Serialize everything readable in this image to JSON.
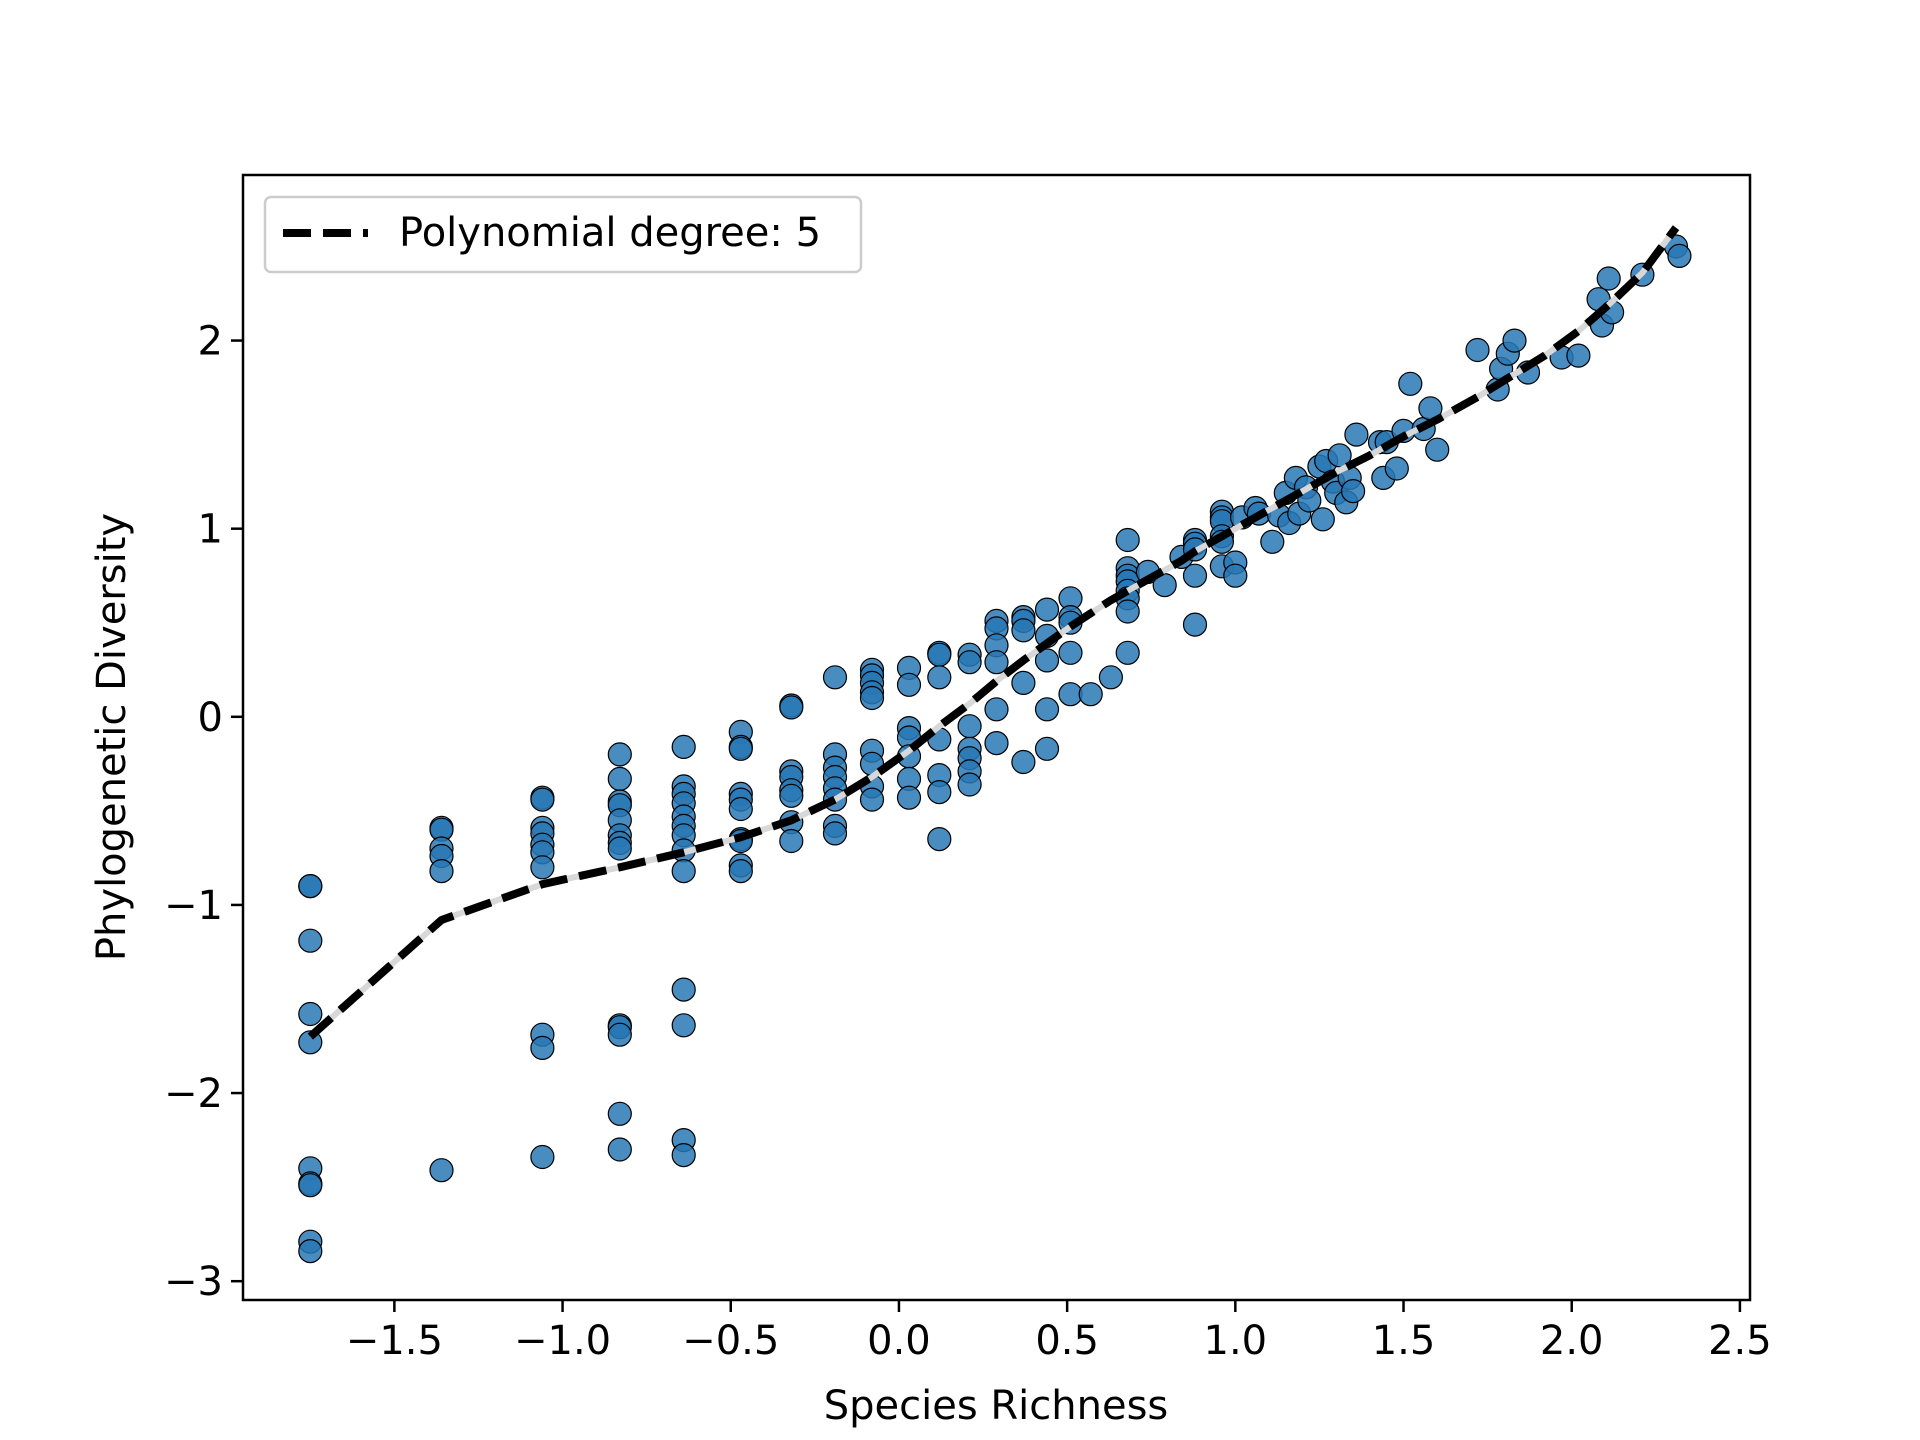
{
  "chart_data": {
    "type": "scatter",
    "xlabel": "Species Richness",
    "ylabel": "Phylogenetic Diversity",
    "xlim": [
      -1.95,
      2.53
    ],
    "ylim": [
      -3.1,
      2.88
    ],
    "xticks": [
      -1.5,
      -1.0,
      -0.5,
      0.0,
      0.5,
      1.0,
      1.5,
      2.0,
      2.5
    ],
    "xtick_labels": [
      "−1.5",
      "−1.0",
      "−0.5",
      "0.0",
      "0.5",
      "1.0",
      "1.5",
      "2.0",
      "2.5"
    ],
    "yticks": [
      -3,
      -2,
      -1,
      0,
      1,
      2
    ],
    "ytick_labels": [
      "−3",
      "−2",
      "−1",
      "0",
      "1",
      "2"
    ],
    "grid": false,
    "legend_position": "upper-left",
    "colors": {
      "points": "#2878b5",
      "point_edge": "#000000",
      "fit_line": "#000000",
      "fit_shadow": "#d8d8d8"
    },
    "series": [
      {
        "kind": "points",
        "x": [
          -1.75,
          -1.75,
          -1.75,
          -1.75,
          -1.75,
          -1.75,
          -1.75,
          -1.75,
          -1.75,
          -1.75,
          -1.36,
          -1.36,
          -1.36,
          -1.36,
          -1.36,
          -1.36,
          -1.06,
          -1.06,
          -1.06,
          -1.06,
          -1.06,
          -1.06,
          -1.06,
          -1.06,
          -1.06,
          -1.06,
          -0.83,
          -0.83,
          -0.83,
          -0.83,
          -0.83,
          -0.83,
          -0.83,
          -0.83,
          -0.83,
          -0.83,
          -0.83,
          -0.83,
          -0.83,
          -0.64,
          -0.64,
          -0.64,
          -0.64,
          -0.64,
          -0.64,
          -0.64,
          -0.64,
          -0.64,
          -0.64,
          -0.64,
          -0.64,
          -0.64,
          -0.47,
          -0.47,
          -0.47,
          -0.47,
          -0.47,
          -0.47,
          -0.47,
          -0.47,
          -0.47,
          -0.47,
          -0.32,
          -0.32,
          -0.32,
          -0.32,
          -0.32,
          -0.32,
          -0.32,
          -0.32,
          -0.19,
          -0.19,
          -0.19,
          -0.19,
          -0.19,
          -0.19,
          -0.19,
          -0.19,
          -0.08,
          -0.08,
          -0.08,
          -0.08,
          -0.08,
          -0.08,
          -0.08,
          -0.08,
          -0.08,
          0.03,
          0.03,
          0.03,
          0.03,
          0.03,
          0.03,
          0.03,
          0.12,
          0.12,
          0.12,
          0.12,
          0.12,
          0.12,
          0.12,
          0.21,
          0.21,
          0.21,
          0.21,
          0.21,
          0.21,
          0.21,
          0.29,
          0.29,
          0.29,
          0.29,
          0.29,
          0.29,
          0.37,
          0.37,
          0.37,
          0.37,
          0.37,
          0.44,
          0.44,
          0.44,
          0.44,
          0.44,
          0.51,
          0.51,
          0.51,
          0.51,
          0.51,
          0.57,
          0.63,
          0.68,
          0.68,
          0.68,
          0.68,
          0.68,
          0.68,
          0.68,
          0.68,
          0.74,
          0.79,
          0.84,
          0.88,
          0.88,
          0.88,
          0.88,
          0.88,
          0.96,
          0.96,
          0.96,
          0.96,
          0.96,
          0.96,
          1.0,
          1.0,
          1.02,
          1.06,
          1.07,
          1.11,
          1.13,
          1.15,
          1.16,
          1.18,
          1.19,
          1.21,
          1.22,
          1.25,
          1.26,
          1.27,
          1.29,
          1.3,
          1.31,
          1.33,
          1.34,
          1.35,
          1.36,
          1.43,
          1.44,
          1.45,
          1.48,
          1.5,
          1.52,
          1.56,
          1.58,
          1.6,
          1.72,
          1.78,
          1.79,
          1.81,
          1.83,
          1.87,
          1.97,
          2.02,
          2.08,
          2.09,
          2.11,
          2.12,
          2.21,
          2.31,
          2.32
        ],
        "y": [
          -0.9,
          -0.9,
          -1.19,
          -1.58,
          -1.73,
          -2.4,
          -2.48,
          -2.49,
          -2.79,
          -2.84,
          -0.59,
          -0.6,
          -0.7,
          -0.74,
          -0.82,
          -2.41,
          -0.43,
          -0.44,
          -0.59,
          -0.62,
          -0.68,
          -0.72,
          -0.8,
          -1.69,
          -1.76,
          -2.34,
          -0.2,
          -0.33,
          -0.45,
          -0.47,
          -0.55,
          -0.63,
          -0.67,
          -0.7,
          -1.64,
          -1.65,
          -1.69,
          -2.11,
          -2.3,
          -0.16,
          -0.37,
          -0.41,
          -0.46,
          -0.53,
          -0.58,
          -0.63,
          -0.71,
          -0.82,
          -1.45,
          -1.64,
          -2.25,
          -2.33,
          -0.08,
          -0.16,
          -0.17,
          -0.41,
          -0.44,
          -0.49,
          -0.65,
          -0.66,
          -0.79,
          -0.82,
          0.06,
          0.05,
          -0.29,
          -0.32,
          -0.39,
          -0.42,
          -0.56,
          -0.66,
          0.21,
          -0.2,
          -0.27,
          -0.32,
          -0.38,
          -0.44,
          -0.58,
          -0.62,
          0.25,
          0.22,
          0.18,
          0.13,
          0.1,
          -0.18,
          -0.25,
          -0.37,
          -0.44,
          0.26,
          0.17,
          -0.06,
          -0.11,
          -0.21,
          -0.33,
          -0.43,
          0.34,
          0.33,
          0.21,
          -0.12,
          -0.31,
          -0.4,
          -0.65,
          0.33,
          0.29,
          -0.05,
          -0.17,
          -0.22,
          -0.29,
          -0.36,
          0.51,
          0.47,
          0.38,
          0.29,
          0.04,
          -0.14,
          0.53,
          0.51,
          0.46,
          0.18,
          -0.24,
          0.57,
          0.43,
          0.3,
          0.04,
          -0.17,
          0.63,
          0.53,
          0.5,
          0.34,
          0.12,
          0.12,
          0.21,
          0.94,
          0.79,
          0.75,
          0.72,
          0.67,
          0.63,
          0.56,
          0.34,
          0.77,
          0.7,
          0.85,
          0.94,
          0.92,
          0.89,
          0.75,
          0.49,
          1.09,
          1.06,
          1.04,
          0.96,
          0.93,
          0.8,
          0.82,
          0.75,
          1.06,
          1.11,
          1.08,
          0.93,
          1.07,
          1.19,
          1.03,
          1.27,
          1.08,
          1.22,
          1.15,
          1.33,
          1.05,
          1.36,
          1.25,
          1.19,
          1.39,
          1.14,
          1.27,
          1.2,
          1.5,
          1.46,
          1.27,
          1.46,
          1.32,
          1.52,
          1.77,
          1.53,
          1.64,
          1.42,
          1.95,
          1.74,
          1.85,
          1.93,
          2.0,
          1.83,
          1.91,
          1.92,
          2.22,
          2.08,
          2.33,
          2.15,
          2.35,
          2.5,
          2.45
        ]
      },
      {
        "kind": "line",
        "name": "Polynomial degree: 5",
        "x": [
          -1.75,
          -1.36,
          -1.06,
          -0.83,
          -0.64,
          -0.47,
          -0.32,
          -0.19,
          -0.08,
          0.03,
          0.12,
          0.21,
          0.29,
          0.37,
          0.44,
          0.51,
          0.57,
          0.63,
          0.68,
          0.74,
          0.79,
          0.84,
          0.88,
          0.96,
          1.02,
          1.11,
          1.2,
          1.3,
          1.4,
          1.5,
          1.6,
          1.72,
          1.81,
          1.92,
          2.02,
          2.11,
          2.21,
          2.31
        ],
        "y": [
          -1.7,
          -1.08,
          -0.89,
          -0.8,
          -0.72,
          -0.64,
          -0.55,
          -0.44,
          -0.32,
          -0.18,
          -0.05,
          0.07,
          0.19,
          0.3,
          0.39,
          0.48,
          0.55,
          0.62,
          0.67,
          0.73,
          0.78,
          0.83,
          0.88,
          0.96,
          1.02,
          1.11,
          1.2,
          1.3,
          1.39,
          1.49,
          1.58,
          1.7,
          1.8,
          1.92,
          2.05,
          2.19,
          2.36,
          2.6
        ]
      }
    ]
  }
}
